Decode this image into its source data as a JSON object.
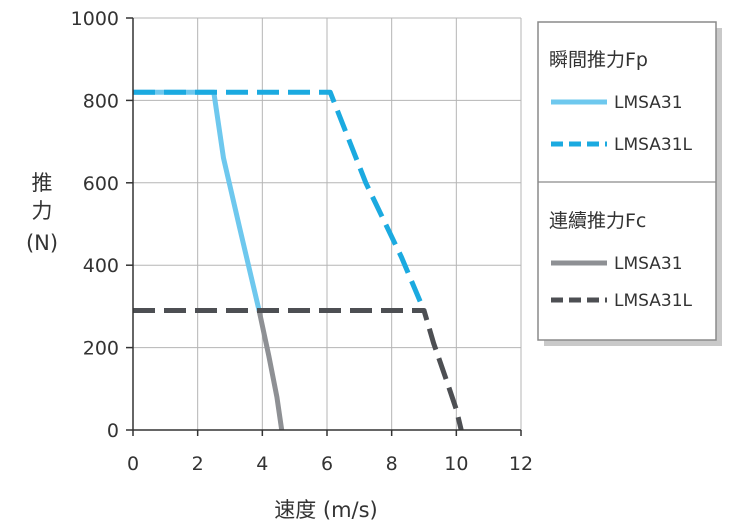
{
  "chart_data": {
    "type": "line",
    "xlabel": "速度 (m/s)",
    "ylabel_chars": [
      "推",
      "力",
      "(N)"
    ],
    "xlim": [
      0,
      12
    ],
    "ylim": [
      0,
      1000
    ],
    "xticks": [
      "0",
      "2",
      "4",
      "6",
      "8",
      "10",
      "12"
    ],
    "yticks": [
      "0",
      "200",
      "400",
      "600",
      "800",
      "1000"
    ],
    "grid": true,
    "legend_position": "right",
    "legend": {
      "group1_title": "瞬間推力Fp",
      "group2_title": "連續推力Fc"
    },
    "series": [
      {
        "name": "LMSA31",
        "group": "瞬間推力Fp",
        "style": "solid",
        "color": "#6EC8EE",
        "points": [
          [
            0,
            820
          ],
          [
            2.5,
            820
          ],
          [
            2.8,
            660
          ],
          [
            3.3,
            490
          ],
          [
            3.9,
            290
          ]
        ]
      },
      {
        "name": "LMSA31L",
        "group": "瞬間推力Fp",
        "style": "dashed",
        "color": "#1BAAE0",
        "points": [
          [
            0,
            820
          ],
          [
            6.1,
            820
          ],
          [
            7.2,
            600
          ],
          [
            8.3,
            420
          ],
          [
            9.0,
            290
          ]
        ]
      },
      {
        "name": "LMSA31",
        "group": "連續推力Fc",
        "style": "solid",
        "color": "#8E9094",
        "points": [
          [
            3.9,
            290
          ],
          [
            4.2,
            180
          ],
          [
            4.45,
            80
          ],
          [
            4.6,
            0
          ]
        ]
      },
      {
        "name": "LMSA31L",
        "group": "連續推力Fc",
        "style": "dashed",
        "color": "#4D4F53",
        "points": [
          [
            0,
            290
          ],
          [
            9.0,
            290
          ],
          [
            9.3,
            210
          ],
          [
            9.7,
            120
          ],
          [
            10.0,
            50
          ],
          [
            10.15,
            0
          ]
        ]
      }
    ]
  }
}
